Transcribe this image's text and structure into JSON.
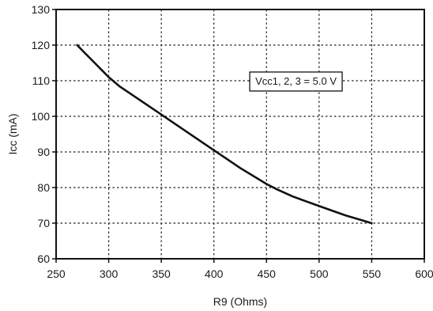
{
  "chart_data": {
    "type": "line",
    "title": "",
    "xlabel": "R9 (Ohms)",
    "ylabel": "Icc (mA)",
    "xlim": [
      250,
      600
    ],
    "ylim": [
      60,
      130
    ],
    "x_ticks": [
      250,
      300,
      350,
      400,
      450,
      500,
      550,
      600
    ],
    "y_ticks": [
      60,
      70,
      80,
      90,
      100,
      110,
      120,
      130
    ],
    "grid": true,
    "grid_style": "dotted",
    "series": [
      {
        "x": [
          270,
          280,
          290,
          300,
          310,
          325,
          350,
          375,
          400,
          425,
          450,
          460,
          475,
          500,
          525,
          550
        ],
        "y": [
          120,
          117,
          114,
          111,
          108.5,
          105.5,
          100.5,
          95.5,
          90.5,
          85.5,
          81,
          79.5,
          77.5,
          74.8,
          72.2,
          70
        ]
      }
    ],
    "annotations": [
      {
        "text": "Vcc1, 2, 3 = 5.0 V",
        "x": 478,
        "y": 110
      }
    ],
    "line_color": "#111111"
  }
}
